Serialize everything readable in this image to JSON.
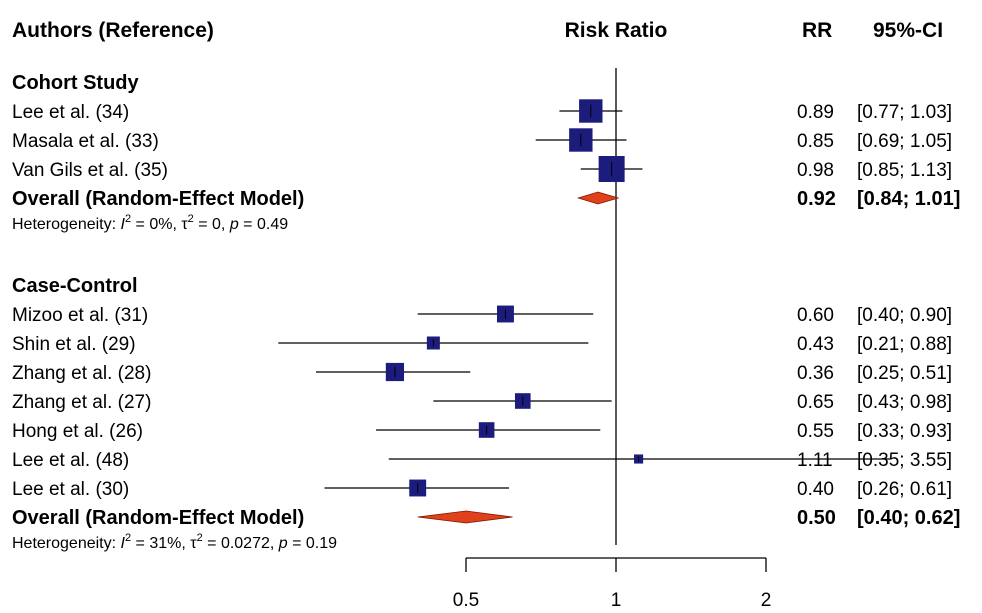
{
  "chart_data": {
    "type": "forest",
    "scale": "log",
    "headers": {
      "study": "Authors (Reference)",
      "axis": "Risk Ratio",
      "rr": "RR",
      "ci": "95%-CI"
    },
    "null_value": 1,
    "x_ticks": [
      {
        "value": 0.5,
        "label": "0.5"
      },
      {
        "value": 1,
        "label": "1"
      },
      {
        "value": 2,
        "label": "2"
      }
    ],
    "groups": [
      {
        "name": "Cohort Study",
        "studies": [
          {
            "label": "Lee  et al. (34)",
            "rr": 0.89,
            "lo": 0.77,
            "hi": 1.03,
            "rr_text": "0.89",
            "ci_text": "[0.77; 1.03]",
            "weight": 0.9
          },
          {
            "label": "Masala  et al. (33)",
            "rr": 0.85,
            "lo": 0.69,
            "hi": 1.05,
            "rr_text": "0.85",
            "ci_text": "[0.69; 1.05]",
            "weight": 0.9
          },
          {
            "label": "Van Gils  et al. (35)",
            "rr": 0.98,
            "lo": 0.85,
            "hi": 1.13,
            "rr_text": "0.98",
            "ci_text": "[0.85; 1.13]",
            "weight": 1.0
          }
        ],
        "overall": {
          "label": "Overall (Random-Effect Model)",
          "rr": 0.92,
          "lo": 0.84,
          "hi": 1.01,
          "rr_text": "0.92",
          "ci_text": "[0.84; 1.01]"
        },
        "heterogeneity": {
          "prefix": "Heterogeneity: ",
          "I2": "I",
          "I2_sup": "2",
          "I2_val": " = 0%, ",
          "tau2": "τ",
          "tau2_sup": "2",
          "tau2_val": " = 0, ",
          "p": "p",
          "p_val": " = 0.49"
        }
      },
      {
        "name": "Case-Control",
        "studies": [
          {
            "label": "Mizoo  et al. (31)",
            "rr": 0.6,
            "lo": 0.4,
            "hi": 0.9,
            "rr_text": "0.60",
            "ci_text": "[0.40; 0.90]",
            "weight": 0.65
          },
          {
            "label": "Shin  et al. (29)",
            "rr": 0.43,
            "lo": 0.21,
            "hi": 0.88,
            "rr_text": "0.43",
            "ci_text": "[0.21; 0.88]",
            "weight": 0.5
          },
          {
            "label": "Zhang  et al. (28)",
            "rr": 0.36,
            "lo": 0.25,
            "hi": 0.51,
            "rr_text": "0.36",
            "ci_text": "[0.25; 0.51]",
            "weight": 0.7
          },
          {
            "label": "Zhang  et al. (27)",
            "rr": 0.65,
            "lo": 0.43,
            "hi": 0.98,
            "rr_text": "0.65",
            "ci_text": "[0.43; 0.98]",
            "weight": 0.6
          },
          {
            "label": "Hong  et al. (26)",
            "rr": 0.55,
            "lo": 0.33,
            "hi": 0.93,
            "rr_text": "0.55",
            "ci_text": "[0.33; 0.93]",
            "weight": 0.6
          },
          {
            "label": "Lee  et al. (48)",
            "rr": 1.11,
            "lo": 0.35,
            "hi": 3.55,
            "rr_text": "1.11",
            "ci_text": "[0.35; 3.55]",
            "weight": 0.35
          },
          {
            "label": "Lee  et al. (30)",
            "rr": 0.4,
            "lo": 0.26,
            "hi": 0.61,
            "rr_text": "0.40",
            "ci_text": "[0.26; 0.61]",
            "weight": 0.65
          }
        ],
        "overall": {
          "label": "Overall (Random-Effect Model)",
          "rr": 0.5,
          "lo": 0.4,
          "hi": 0.62,
          "rr_text": "0.50",
          "ci_text": "[0.40; 0.62]"
        },
        "heterogeneity": {
          "prefix": "Heterogeneity: ",
          "I2": "I",
          "I2_sup": "2",
          "I2_val": " = 31%, ",
          "tau2": "τ",
          "tau2_sup": "2",
          "tau2_val": " = 0.0272, ",
          "p": "p",
          "p_val": " = 0.19"
        }
      }
    ],
    "colors": {
      "square": "#1c1c7c",
      "diamond": "#e0401a",
      "line": "#000000"
    }
  }
}
